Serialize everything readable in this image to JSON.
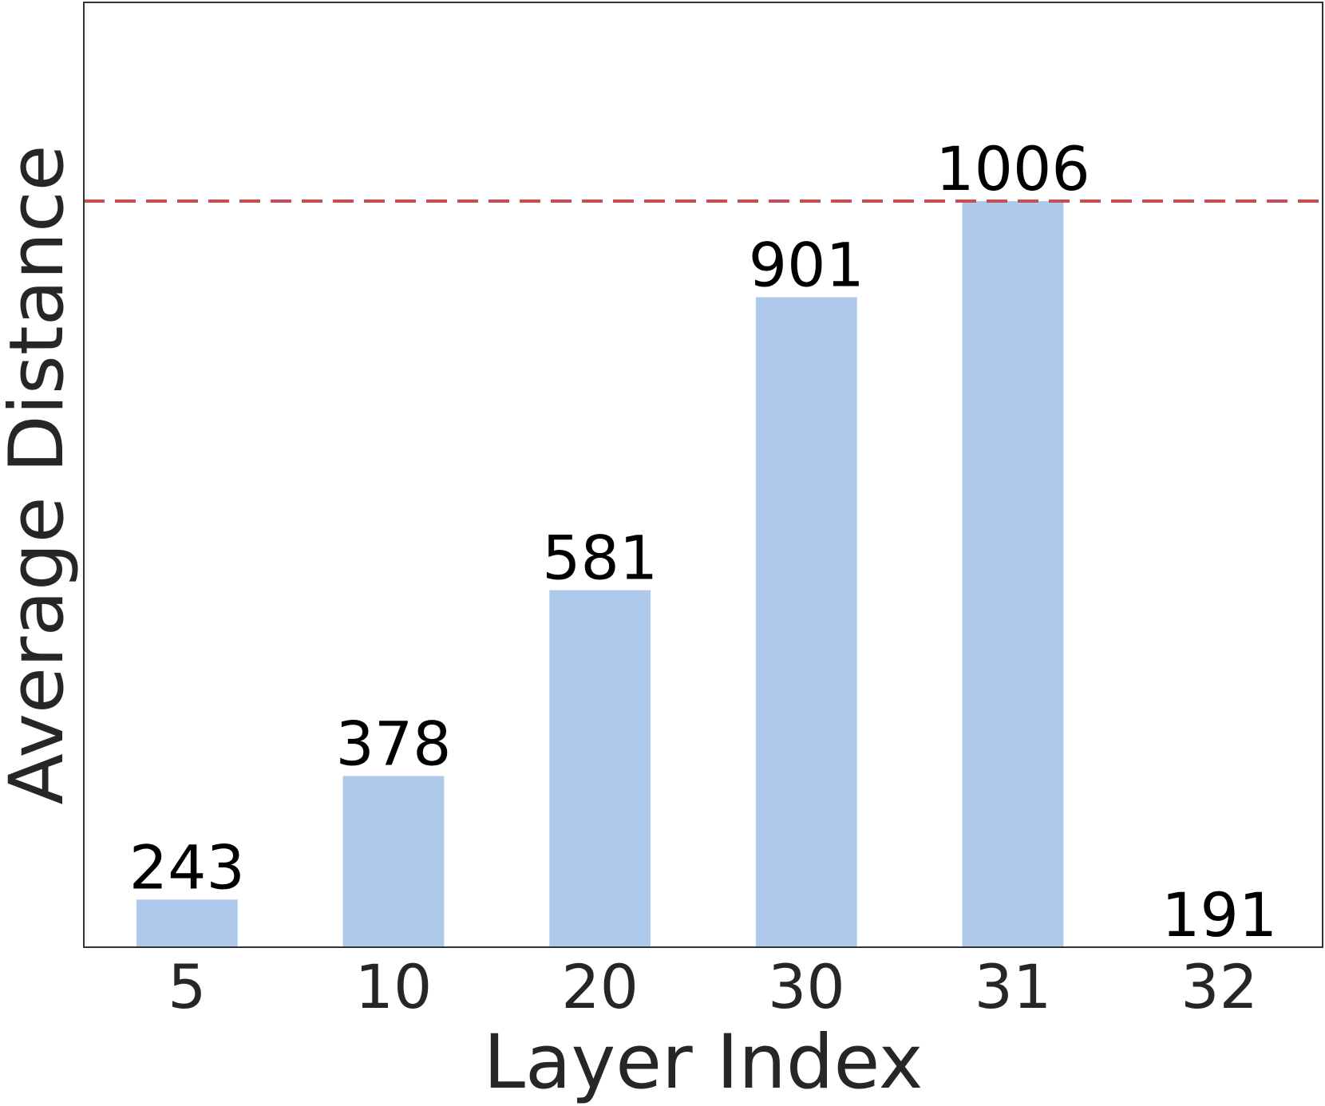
{
  "chart_data": {
    "type": "bar",
    "title": "",
    "xlabel": "Layer Index",
    "ylabel": "Average Distance",
    "categories": [
      "5",
      "10",
      "20",
      "30",
      "31",
      "32"
    ],
    "values": [
      243,
      378,
      581,
      901,
      1006,
      191
    ],
    "value_labels": [
      "243",
      "378",
      "581",
      "901",
      "1006",
      "191"
    ],
    "baseline_value": 191,
    "reference_line": {
      "value": 1006,
      "style": "dashed"
    },
    "ylim": [
      191,
      1223
    ],
    "y_ticks_shown": false,
    "grid": false,
    "legend": "none",
    "colors": {
      "bar": "#aec9eb",
      "reference_line": "#c44e52",
      "axes": "#333333"
    }
  }
}
